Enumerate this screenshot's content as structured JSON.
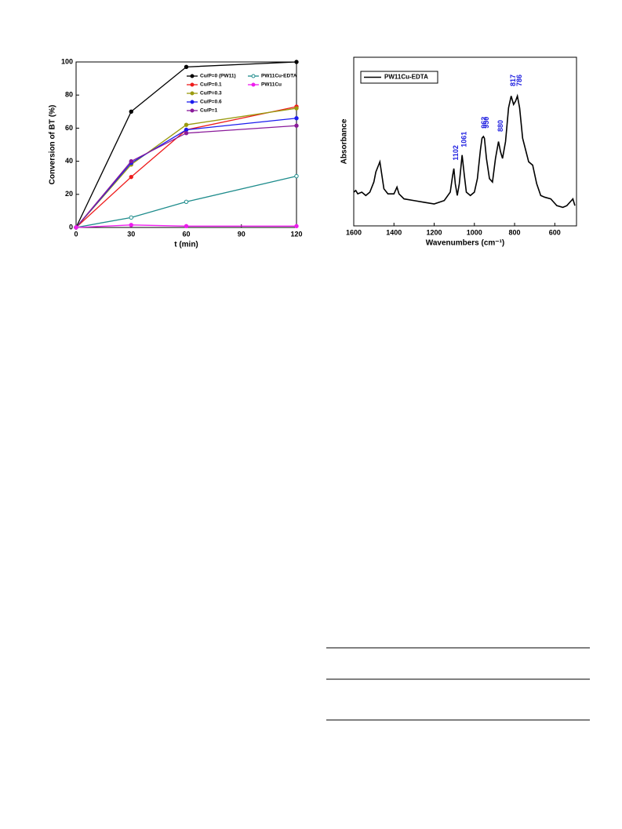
{
  "chart_data": [
    {
      "type": "line",
      "x_label": "t (min)",
      "y_label": "Conversion of  BT (%)",
      "x": [
        0,
        30,
        60,
        120
      ],
      "xlim": [
        0,
        120
      ],
      "xticks": [
        0,
        30,
        60,
        90,
        120
      ],
      "ylim": [
        0,
        100
      ],
      "yticks": [
        0,
        20,
        40,
        60,
        80,
        100
      ],
      "series": [
        {
          "name": "Cu/P=0  (PW11)",
          "color": "#000000",
          "values": [
            0,
            70,
            97,
            100
          ]
        },
        {
          "name": "Cu/P=0.1",
          "color": "#ee1c1c",
          "values": [
            0,
            30.5,
            59,
            73
          ]
        },
        {
          "name": "Cu/P=0.3",
          "color": "#9a9a10",
          "values": [
            0,
            38,
            62,
            72
          ]
        },
        {
          "name": "Cu/P=0.6",
          "color": "#1c1cee",
          "values": [
            0,
            39,
            59,
            66
          ]
        },
        {
          "name": "Cu/P=1",
          "color": "#8a1a9a",
          "values": [
            0,
            40,
            57,
            61.5
          ]
        },
        {
          "name": "PW11Cu-EDTA",
          "color": "#1e8c8c",
          "values": [
            0,
            6,
            15.5,
            31
          ]
        },
        {
          "name": "PW11Cu",
          "color": "#ee1cee",
          "values": [
            0,
            1.5,
            0.8,
            0.8
          ]
        }
      ]
    },
    {
      "type": "spectrum",
      "x_label": "Wavenumbers (cm⁻¹)",
      "y_label": "Absorbance",
      "xlim": [
        1600,
        492
      ],
      "xticks": [
        1600,
        1400,
        1200,
        1000,
        800,
        600
      ],
      "ylim": [
        0,
        100
      ],
      "x": [
        1600,
        1590,
        1580,
        1560,
        1540,
        1520,
        1500,
        1490,
        1480,
        1470,
        1460,
        1450,
        1430,
        1400,
        1385,
        1375,
        1350,
        1300,
        1250,
        1200,
        1150,
        1120,
        1108,
        1102,
        1095,
        1085,
        1075,
        1061,
        1050,
        1040,
        1020,
        1000,
        985,
        970,
        962,
        955,
        950,
        940,
        925,
        910,
        895,
        880,
        870,
        860,
        845,
        830,
        817,
        805,
        795,
        786,
        775,
        760,
        745,
        730,
        710,
        690,
        670,
        650,
        620,
        605,
        590,
        560,
        540,
        525,
        510,
        500
      ],
      "annotations": [
        1102,
        1061,
        962,
        950,
        880,
        817,
        786
      ],
      "series": [
        {
          "name": "PW11Cu-EDTA",
          "color": "#000000",
          "values": [
            20,
            21,
            19,
            20,
            18,
            20,
            26,
            32,
            35,
            38,
            30,
            22,
            19,
            19,
            23,
            19,
            16,
            15,
            14,
            13,
            15,
            20,
            30,
            34,
            25,
            18,
            25,
            42,
            30,
            20,
            18,
            20,
            28,
            45,
            52,
            53,
            52,
            40,
            28,
            26,
            40,
            50,
            44,
            40,
            50,
            70,
            77,
            72,
            74,
            77,
            70,
            52,
            45,
            38,
            36,
            25,
            18,
            17,
            16,
            14,
            12,
            11,
            12,
            14,
            16,
            12
          ]
        }
      ]
    }
  ]
}
